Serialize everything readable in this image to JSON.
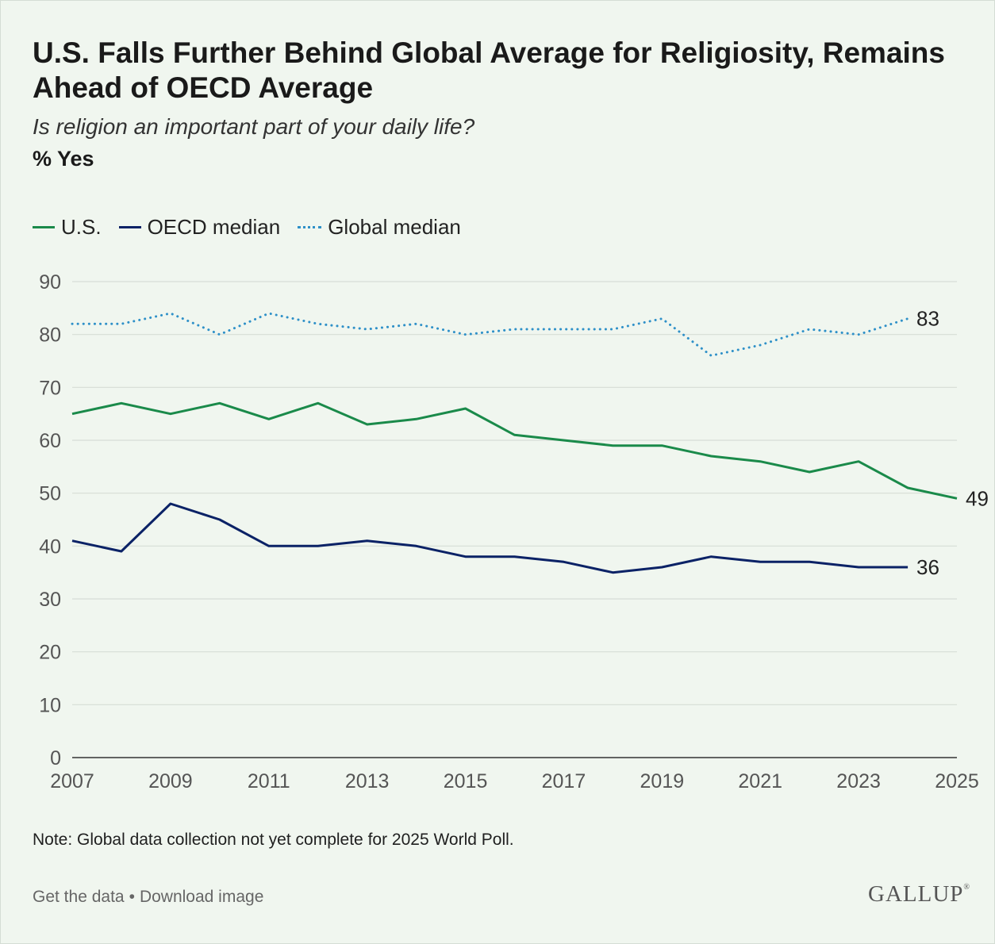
{
  "header": {
    "title": "U.S. Falls Further Behind Global Average for Religiosity, Remains Ahead of OECD Average",
    "subtitle": "Is religion an important part of your daily life?",
    "measure": "% Yes"
  },
  "note": "Note: Global data collection not yet complete for 2025 World Poll.",
  "footer": {
    "get_data": "Get the data",
    "separator": "•",
    "download": "Download image",
    "logo": "GALLUP",
    "logo_mark": "®"
  },
  "chart_data": {
    "type": "line",
    "title": "U.S. Falls Further Behind Global Average for Religiosity, Remains Ahead of OECD Average",
    "subtitle": "Is religion an important part of your daily life?",
    "ylabel": "% Yes",
    "xlabel": "",
    "xlim": [
      2007,
      2025
    ],
    "ylim": [
      0,
      90
    ],
    "xticks": [
      2007,
      2009,
      2011,
      2013,
      2015,
      2017,
      2019,
      2021,
      2023,
      2025
    ],
    "yticks": [
      0,
      10,
      20,
      30,
      40,
      50,
      60,
      70,
      80,
      90
    ],
    "grid": "horizontal",
    "legend_position": "top-left",
    "series": [
      {
        "name": "U.S.",
        "key": "us",
        "color": "#1a8a4a",
        "style": "solid",
        "x": [
          2007,
          2008,
          2009,
          2010,
          2011,
          2012,
          2013,
          2014,
          2015,
          2016,
          2017,
          2018,
          2019,
          2020,
          2021,
          2022,
          2023,
          2024,
          2025
        ],
        "values": [
          65,
          67,
          65,
          67,
          64,
          67,
          63,
          64,
          66,
          61,
          60,
          59,
          59,
          57,
          56,
          54,
          56,
          51,
          49
        ],
        "end_label": "49"
      },
      {
        "name": "OECD median",
        "key": "oecd",
        "color": "#0b2266",
        "style": "solid",
        "x": [
          2007,
          2008,
          2009,
          2010,
          2011,
          2012,
          2013,
          2014,
          2015,
          2016,
          2017,
          2018,
          2019,
          2020,
          2021,
          2022,
          2023,
          2024
        ],
        "values": [
          41,
          39,
          48,
          45,
          40,
          40,
          41,
          40,
          38,
          38,
          37,
          35,
          36,
          38,
          37,
          37,
          36,
          36
        ],
        "end_label": "36"
      },
      {
        "name": "Global median",
        "key": "global",
        "color": "#2e90c8",
        "style": "dotted",
        "x": [
          2007,
          2008,
          2009,
          2010,
          2011,
          2012,
          2013,
          2014,
          2015,
          2016,
          2017,
          2018,
          2019,
          2020,
          2021,
          2022,
          2023,
          2024
        ],
        "values": [
          82,
          82,
          84,
          80,
          84,
          82,
          81,
          82,
          80,
          81,
          81,
          81,
          83,
          76,
          78,
          81,
          80,
          83
        ],
        "end_label": "83"
      }
    ]
  }
}
